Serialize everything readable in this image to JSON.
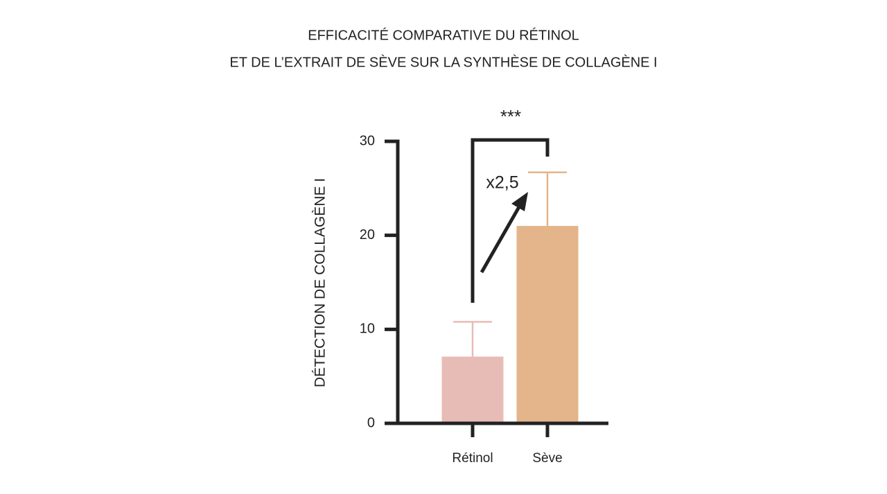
{
  "chart_data": {
    "type": "bar",
    "title": [
      "EFFICACITÉ COMPARATIVE DU RÉTINOL",
      "ET DE L’EXTRAIT DE SÈVE SUR LA SYNTHÈSE DE COLLAGÈNE I"
    ],
    "y_label": "DÉTECTION DE COLLAGÈNE I",
    "categories": [
      "Rétinol",
      "Sève"
    ],
    "values": [
      7.1,
      21.0
    ],
    "errors": [
      3.7,
      5.7
    ],
    "colors": [
      "#e8bcb6",
      "#e4b48a"
    ],
    "ylim": [
      0,
      30
    ],
    "yticks": [
      0,
      10,
      20,
      30
    ],
    "annotations": [
      "***",
      "x2,5"
    ]
  }
}
